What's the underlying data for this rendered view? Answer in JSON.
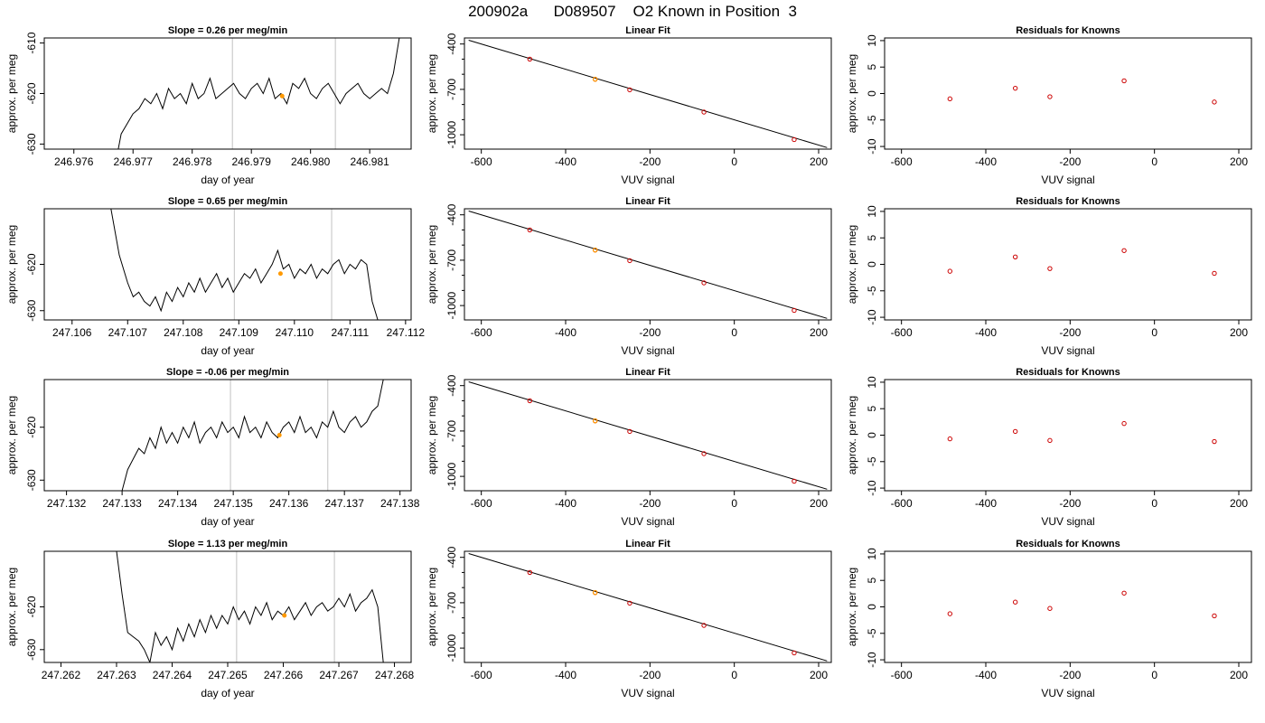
{
  "title": "200902a      D089507    O2 Known in Position  3",
  "colors": {
    "trace": "#000000",
    "refline": "#cccccc",
    "known": "#cc0000",
    "current": "#ff9900",
    "frame": "#000000"
  },
  "chart_data": [
    {
      "type": "line",
      "title": "Slope =  0.26  per meg/min",
      "xlabel": "day of year",
      "ylabel": "approx. per meg",
      "xlim": [
        246.9755,
        246.9817
      ],
      "ylim": [
        -631,
        -609
      ],
      "xticks": [
        246.976,
        246.977,
        246.978,
        246.979,
        246.98,
        246.981
      ],
      "xtick_labels": [
        "246.976",
        "246.977",
        "246.978",
        "246.979",
        "246.980",
        "246.981"
      ],
      "yticks": [
        -630,
        -620,
        -610
      ],
      "ytick_labels": [
        "-630",
        "-620",
        "-610"
      ],
      "trace_x": [
        246.97675,
        246.9768,
        246.9769,
        246.977,
        246.9771,
        246.9772,
        246.9773,
        246.9774,
        246.9775,
        246.9776,
        246.9777,
        246.9778,
        246.9779,
        246.978,
        246.9781,
        246.9782,
        246.9783,
        246.9784,
        246.9785,
        246.9786,
        246.9787,
        246.9788,
        246.9789,
        246.979,
        246.9791,
        246.9792,
        246.9793,
        246.9794,
        246.9795,
        246.9796,
        246.9797,
        246.9798,
        246.9799,
        246.98,
        246.9801,
        246.9802,
        246.9803,
        246.9804,
        246.9805,
        246.9806,
        246.9807,
        246.9808,
        246.9809,
        246.981,
        246.9811,
        246.9812,
        246.9813,
        246.9814,
        246.9815
      ],
      "trace_y": [
        -631,
        -628,
        -626,
        -624,
        -623,
        -621,
        -622,
        -620,
        -623,
        -619,
        -621,
        -620,
        -622,
        -618,
        -621,
        -620,
        -617,
        -621,
        -620,
        -619,
        -618,
        -620,
        -621,
        -619,
        -618,
        -620,
        -617,
        -621,
        -620,
        -622,
        -618,
        -619,
        -617,
        -620,
        -621,
        -619,
        -618,
        -620,
        -622,
        -620,
        -619,
        -618,
        -620,
        -621,
        -620,
        -619,
        -620,
        -616,
        -609
      ],
      "vlines": [
        246.97868,
        246.98042
      ],
      "current_point": {
        "x": 246.97952,
        "y": -620.5
      }
    },
    {
      "type": "scatter",
      "title": "Linear Fit",
      "xlabel": "VUV signal",
      "ylabel": "approx. per meg",
      "xlim": [
        -640,
        230
      ],
      "ylim": [
        -1095,
        -360
      ],
      "xticks": [
        -600,
        -400,
        -200,
        0,
        200
      ],
      "xtick_labels": [
        "-600",
        "-400",
        "-200",
        "0",
        "200"
      ],
      "yticks": [
        -1000,
        -700,
        -400
      ],
      "ytick_labels": [
        "-1000",
        "-700",
        "-400"
      ],
      "fit_line": [
        [
          -630,
          -375
        ],
        [
          220,
          -1085
        ]
      ],
      "points": [
        {
          "x": -485,
          "y": -500
        },
        {
          "x": -330,
          "y": -633
        },
        {
          "x": -248,
          "y": -703
        },
        {
          "x": -72,
          "y": -850
        },
        {
          "x": 142,
          "y": -1032
        }
      ],
      "highlight": {
        "x": -330,
        "y": -633
      }
    },
    {
      "type": "scatter",
      "title": "Residuals for Knowns",
      "xlabel": "VUV signal",
      "ylabel": "approx. per meg",
      "xlim": [
        -640,
        230
      ],
      "ylim": [
        -10.5,
        10.5
      ],
      "xticks": [
        -600,
        -400,
        -200,
        0,
        200
      ],
      "xtick_labels": [
        "-600",
        "-400",
        "-200",
        "0",
        "200"
      ],
      "yticks": [
        -10,
        -5,
        0,
        5,
        10
      ],
      "ytick_labels": [
        "-10",
        "-5",
        "0",
        "5",
        "10"
      ],
      "points": [
        {
          "x": -485,
          "y": -1.0
        },
        {
          "x": -330,
          "y": 1.0
        },
        {
          "x": -248,
          "y": -0.6
        },
        {
          "x": -72,
          "y": 2.4
        },
        {
          "x": 142,
          "y": -1.6
        }
      ]
    },
    {
      "type": "line",
      "title": "Slope =  0.65  per meg/min",
      "xlabel": "day of year",
      "ylabel": "approx. per meg",
      "xlim": [
        247.1055,
        247.1121
      ],
      "ylim": [
        -632,
        -608
      ],
      "xticks": [
        247.106,
        247.107,
        247.108,
        247.109,
        247.11,
        247.111,
        247.112
      ],
      "xtick_labels": [
        "247.106",
        "247.107",
        "247.108",
        "247.109",
        "247.110",
        "247.111",
        "247.112"
      ],
      "yticks": [
        -630,
        -620
      ],
      "ytick_labels": [
        "-630",
        "-620"
      ],
      "trace_x": [
        247.1067,
        247.10685,
        247.107,
        247.1071,
        247.1072,
        247.1073,
        247.1074,
        247.1075,
        247.1076,
        247.1077,
        247.1078,
        247.1079,
        247.108,
        247.1081,
        247.1082,
        247.1083,
        247.1084,
        247.1085,
        247.1086,
        247.1087,
        247.1088,
        247.1089,
        247.109,
        247.1091,
        247.1092,
        247.1093,
        247.1094,
        247.1095,
        247.1096,
        247.1097,
        247.1098,
        247.1099,
        247.11,
        247.1101,
        247.1102,
        247.1103,
        247.1104,
        247.1105,
        247.1106,
        247.1107,
        247.1108,
        247.1109,
        247.111,
        247.1111,
        247.1112,
        247.1113,
        247.1114,
        247.1115
      ],
      "trace_y": [
        -608,
        -618,
        -624,
        -627,
        -626,
        -628,
        -629,
        -627,
        -630,
        -626,
        -628,
        -625,
        -627,
        -624,
        -626,
        -623,
        -626,
        -624,
        -622,
        -625,
        -623,
        -626,
        -624,
        -622,
        -623,
        -621,
        -624,
        -622,
        -620,
        -617,
        -621,
        -620,
        -623,
        -621,
        -622,
        -620,
        -623,
        -621,
        -622,
        -620,
        -619,
        -622,
        -620,
        -621,
        -619,
        -620,
        -628,
        -632
      ],
      "vlines": [
        247.10892,
        247.11067
      ],
      "current_point": {
        "x": 247.10975,
        "y": -622
      }
    },
    {
      "type": "scatter",
      "title": "Linear Fit",
      "xlabel": "VUV signal",
      "ylabel": "approx. per meg",
      "xlim": [
        -640,
        230
      ],
      "ylim": [
        -1095,
        -360
      ],
      "xticks": [
        -600,
        -400,
        -200,
        0,
        200
      ],
      "xtick_labels": [
        "-600",
        "-400",
        "-200",
        "0",
        "200"
      ],
      "yticks": [
        -1000,
        -700,
        -400
      ],
      "ytick_labels": [
        "-1000",
        "-700",
        "-400"
      ],
      "fit_line": [
        [
          -630,
          -375
        ],
        [
          220,
          -1085
        ]
      ],
      "points": [
        {
          "x": -485,
          "y": -500
        },
        {
          "x": -330,
          "y": -633
        },
        {
          "x": -248,
          "y": -703
        },
        {
          "x": -72,
          "y": -850
        },
        {
          "x": 142,
          "y": -1032
        }
      ],
      "highlight": {
        "x": -330,
        "y": -633
      }
    },
    {
      "type": "scatter",
      "title": "Residuals for Knowns",
      "xlabel": "VUV signal",
      "ylabel": "approx. per meg",
      "xlim": [
        -640,
        230
      ],
      "ylim": [
        -10.5,
        10.5
      ],
      "xticks": [
        -600,
        -400,
        -200,
        0,
        200
      ],
      "xtick_labels": [
        "-600",
        "-400",
        "-200",
        "0",
        "200"
      ],
      "yticks": [
        -10,
        -5,
        0,
        5,
        10
      ],
      "ytick_labels": [
        "-10",
        "-5",
        "0",
        "5",
        "10"
      ],
      "points": [
        {
          "x": -485,
          "y": -1.3
        },
        {
          "x": -330,
          "y": 1.4
        },
        {
          "x": -248,
          "y": -0.8
        },
        {
          "x": -72,
          "y": 2.6
        },
        {
          "x": 142,
          "y": -1.7
        }
      ]
    },
    {
      "type": "line",
      "title": "Slope =  -0.06  per meg/min",
      "xlabel": "day of year",
      "ylabel": "approx. per meg",
      "xlim": [
        247.1316,
        247.1382
      ],
      "ylim": [
        -632,
        -611
      ],
      "xticks": [
        247.132,
        247.133,
        247.134,
        247.135,
        247.136,
        247.137,
        247.138
      ],
      "xtick_labels": [
        "247.132",
        "247.133",
        "247.134",
        "247.135",
        "247.136",
        "247.137",
        "247.138"
      ],
      "yticks": [
        -630,
        -620
      ],
      "ytick_labels": [
        "-630",
        "-620"
      ],
      "trace_x": [
        247.133,
        247.1331,
        247.1332,
        247.1333,
        247.1334,
        247.1335,
        247.1336,
        247.1337,
        247.1338,
        247.1339,
        247.134,
        247.1341,
        247.1342,
        247.1343,
        247.1344,
        247.1345,
        247.1346,
        247.1347,
        247.1348,
        247.1349,
        247.135,
        247.1351,
        247.1352,
        247.1353,
        247.1354,
        247.1355,
        247.1356,
        247.1357,
        247.1358,
        247.1359,
        247.136,
        247.1361,
        247.1362,
        247.1363,
        247.1364,
        247.1365,
        247.1366,
        247.1367,
        247.1368,
        247.1369,
        247.137,
        247.1371,
        247.1372,
        247.1373,
        247.1374,
        247.1375,
        247.1376,
        247.1377
      ],
      "trace_y": [
        -632,
        -628,
        -626,
        -624,
        -625,
        -622,
        -624,
        -620,
        -623,
        -621,
        -623,
        -620,
        -622,
        -619,
        -623,
        -621,
        -620,
        -622,
        -619,
        -621,
        -620,
        -622,
        -618,
        -621,
        -620,
        -622,
        -619,
        -621,
        -622,
        -620,
        -619,
        -621,
        -618,
        -621,
        -620,
        -622,
        -619,
        -620,
        -617,
        -620,
        -621,
        -619,
        -618,
        -620,
        -619,
        -617,
        -616,
        -611
      ],
      "vlines": [
        247.13495,
        247.1367
      ],
      "current_point": {
        "x": 247.13583,
        "y": -621.5
      }
    },
    {
      "type": "scatter",
      "title": "Linear Fit",
      "xlabel": "VUV signal",
      "ylabel": "approx. per meg",
      "xlim": [
        -640,
        230
      ],
      "ylim": [
        -1095,
        -360
      ],
      "xticks": [
        -600,
        -400,
        -200,
        0,
        200
      ],
      "xtick_labels": [
        "-600",
        "-400",
        "-200",
        "0",
        "200"
      ],
      "yticks": [
        -1000,
        -700,
        -400
      ],
      "ytick_labels": [
        "-1000",
        "-700",
        "-400"
      ],
      "fit_line": [
        [
          -630,
          -375
        ],
        [
          220,
          -1085
        ]
      ],
      "points": [
        {
          "x": -485,
          "y": -500
        },
        {
          "x": -330,
          "y": -633
        },
        {
          "x": -248,
          "y": -703
        },
        {
          "x": -72,
          "y": -850
        },
        {
          "x": 142,
          "y": -1032
        }
      ],
      "highlight": {
        "x": -330,
        "y": -633
      }
    },
    {
      "type": "scatter",
      "title": "Residuals for Knowns",
      "xlabel": "VUV signal",
      "ylabel": "approx. per meg",
      "xlim": [
        -640,
        230
      ],
      "ylim": [
        -10.5,
        10.5
      ],
      "xticks": [
        -600,
        -400,
        -200,
        0,
        200
      ],
      "xtick_labels": [
        "-600",
        "-400",
        "-200",
        "0",
        "200"
      ],
      "yticks": [
        -10,
        -5,
        0,
        5,
        10
      ],
      "ytick_labels": [
        "-10",
        "-5",
        "0",
        "5",
        "10"
      ],
      "points": [
        {
          "x": -485,
          "y": -0.7
        },
        {
          "x": -330,
          "y": 0.7
        },
        {
          "x": -248,
          "y": -1.0
        },
        {
          "x": -72,
          "y": 2.2
        },
        {
          "x": 142,
          "y": -1.2
        }
      ]
    },
    {
      "type": "line",
      "title": "Slope =  1.13  per meg/min",
      "xlabel": "day of year",
      "ylabel": "approx. per meg",
      "xlim": [
        247.2617,
        247.2683
      ],
      "ylim": [
        -633,
        -607
      ],
      "xticks": [
        247.262,
        247.263,
        247.264,
        247.265,
        247.266,
        247.267,
        247.268
      ],
      "xtick_labels": [
        "247.262",
        "247.263",
        "247.264",
        "247.265",
        "247.266",
        "247.267",
        "247.268"
      ],
      "yticks": [
        -630,
        -620
      ],
      "ytick_labels": [
        "-630",
        "-620"
      ],
      "trace_x": [
        247.263,
        247.2631,
        247.2632,
        247.2633,
        247.2634,
        247.2635,
        247.2636,
        247.2637,
        247.2638,
        247.2639,
        247.264,
        247.2641,
        247.2642,
        247.2643,
        247.2644,
        247.2645,
        247.2646,
        247.2647,
        247.2648,
        247.2649,
        247.265,
        247.2651,
        247.2652,
        247.2653,
        247.2654,
        247.2655,
        247.2656,
        247.2657,
        247.2658,
        247.2659,
        247.266,
        247.2661,
        247.2662,
        247.2663,
        247.2664,
        247.2665,
        247.2666,
        247.2667,
        247.2668,
        247.2669,
        247.267,
        247.2671,
        247.2672,
        247.2673,
        247.2674,
        247.2675,
        247.2676,
        247.2677,
        247.2678
      ],
      "trace_y": [
        -607,
        -617,
        -626,
        -627,
        -628,
        -630,
        -633,
        -626,
        -629,
        -627,
        -630,
        -625,
        -628,
        -624,
        -627,
        -623,
        -626,
        -622,
        -625,
        -622,
        -624,
        -620,
        -623,
        -621,
        -624,
        -620,
        -622,
        -619,
        -623,
        -621,
        -622,
        -620,
        -623,
        -621,
        -619,
        -622,
        -620,
        -619,
        -621,
        -620,
        -618,
        -620,
        -617,
        -621,
        -619,
        -618,
        -616,
        -620,
        -633
      ],
      "vlines": [
        247.26516,
        247.26692
      ],
      "current_point": {
        "x": 247.26602,
        "y": -622
      }
    },
    {
      "type": "scatter",
      "title": "Linear Fit",
      "xlabel": "VUV signal",
      "ylabel": "approx. per meg",
      "xlim": [
        -640,
        230
      ],
      "ylim": [
        -1095,
        -360
      ],
      "xticks": [
        -600,
        -400,
        -200,
        0,
        200
      ],
      "xtick_labels": [
        "-600",
        "-400",
        "-200",
        "0",
        "200"
      ],
      "yticks": [
        -1000,
        -700,
        -400
      ],
      "ytick_labels": [
        "-1000",
        "-700",
        "-400"
      ],
      "fit_line": [
        [
          -630,
          -375
        ],
        [
          220,
          -1085
        ]
      ],
      "points": [
        {
          "x": -485,
          "y": -500
        },
        {
          "x": -330,
          "y": -633
        },
        {
          "x": -248,
          "y": -703
        },
        {
          "x": -72,
          "y": -850
        },
        {
          "x": 142,
          "y": -1032
        }
      ],
      "highlight": {
        "x": -330,
        "y": -633
      }
    },
    {
      "type": "scatter",
      "title": "Residuals for Knowns",
      "xlabel": "VUV signal",
      "ylabel": "approx. per meg",
      "xlim": [
        -640,
        230
      ],
      "ylim": [
        -10.5,
        10.5
      ],
      "xticks": [
        -600,
        -400,
        -200,
        0,
        200
      ],
      "xtick_labels": [
        "-600",
        "-400",
        "-200",
        "0",
        "200"
      ],
      "yticks": [
        -10,
        -5,
        0,
        5,
        10
      ],
      "ytick_labels": [
        "-10",
        "-5",
        "0",
        "5",
        "10"
      ],
      "points": [
        {
          "x": -485,
          "y": -1.3
        },
        {
          "x": -330,
          "y": 0.9
        },
        {
          "x": -248,
          "y": -0.3
        },
        {
          "x": -72,
          "y": 2.6
        },
        {
          "x": 142,
          "y": -1.7
        }
      ]
    }
  ]
}
